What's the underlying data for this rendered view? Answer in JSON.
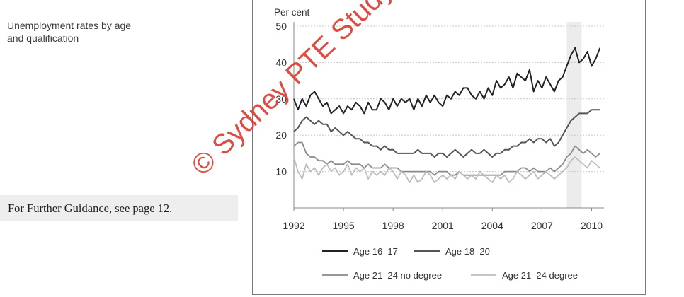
{
  "page": {
    "chart_title": "Unemployment rates by age\nand qualification",
    "guidance_text": "For Further Guidance, see page 12.",
    "watermark": "© Sydney PTE Study Centre"
  },
  "chart_data": {
    "type": "line",
    "ylabel": "Per cent",
    "xlabel": "",
    "ylim": [
      0,
      50
    ],
    "xlim": [
      1992,
      2010.75
    ],
    "yticks": [
      10,
      20,
      30,
      40,
      50
    ],
    "xticks": [
      1992,
      1995,
      1998,
      2001,
      2004,
      2007,
      2010
    ],
    "grid": true,
    "legend_position": "bottom",
    "shaded_period": [
      2008.5,
      2009.4
    ],
    "series": [
      {
        "name": "Age 16–17",
        "color": "#222222",
        "x": [
          1992,
          1992.25,
          1992.5,
          1992.75,
          1993,
          1993.25,
          1993.5,
          1993.75,
          1994,
          1994.25,
          1994.5,
          1994.75,
          1995,
          1995.25,
          1995.5,
          1995.75,
          1996,
          1996.25,
          1996.5,
          1996.75,
          1997,
          1997.25,
          1997.5,
          1997.75,
          1998,
          1998.25,
          1998.5,
          1998.75,
          1999,
          1999.25,
          1999.5,
          1999.75,
          2000,
          2000.25,
          2000.5,
          2000.75,
          2001,
          2001.25,
          2001.5,
          2001.75,
          2002,
          2002.25,
          2002.5,
          2002.75,
          2003,
          2003.25,
          2003.5,
          2003.75,
          2004,
          2004.25,
          2004.5,
          2004.75,
          2005,
          2005.25,
          2005.5,
          2005.75,
          2006,
          2006.25,
          2006.5,
          2006.75,
          2007,
          2007.25,
          2007.5,
          2007.75,
          2008,
          2008.25,
          2008.5,
          2008.75,
          2009,
          2009.25,
          2009.5,
          2009.75,
          2010,
          2010.25,
          2010.5
        ],
        "values": [
          30,
          27,
          30,
          28,
          31,
          32,
          30,
          28,
          29,
          26,
          27,
          28,
          26,
          28,
          27,
          29,
          28,
          26,
          29,
          27,
          27,
          30,
          29,
          27,
          30,
          28,
          30,
          29,
          30,
          27,
          30,
          28,
          31,
          29,
          31,
          29,
          28,
          31,
          30,
          32,
          31,
          33,
          33,
          31,
          30,
          32,
          30,
          33,
          31,
          35,
          33,
          34,
          36,
          33,
          37,
          36,
          35,
          38,
          32,
          35,
          33,
          36,
          34,
          32,
          35,
          36,
          39,
          42,
          44,
          40,
          41,
          43,
          39,
          41,
          44
        ]
      },
      {
        "name": "Age 18–20",
        "color": "#555555",
        "x": [
          1992,
          1992.25,
          1992.5,
          1992.75,
          1993,
          1993.25,
          1993.5,
          1993.75,
          1994,
          1994.25,
          1994.5,
          1994.75,
          1995,
          1995.25,
          1995.5,
          1995.75,
          1996,
          1996.25,
          1996.5,
          1996.75,
          1997,
          1997.25,
          1997.5,
          1997.75,
          1998,
          1998.25,
          1998.5,
          1998.75,
          1999,
          1999.25,
          1999.5,
          1999.75,
          2000,
          2000.25,
          2000.5,
          2000.75,
          2001,
          2001.25,
          2001.5,
          2001.75,
          2002,
          2002.25,
          2002.5,
          2002.75,
          2003,
          2003.25,
          2003.5,
          2003.75,
          2004,
          2004.25,
          2004.5,
          2004.75,
          2005,
          2005.25,
          2005.5,
          2005.75,
          2006,
          2006.25,
          2006.5,
          2006.75,
          2007,
          2007.25,
          2007.5,
          2007.75,
          2008,
          2008.25,
          2008.5,
          2008.75,
          2009,
          2009.25,
          2009.5,
          2009.75,
          2010,
          2010.25,
          2010.5
        ],
        "values": [
          21,
          22,
          24,
          25,
          24,
          23,
          24,
          23,
          23,
          21,
          22,
          21,
          20,
          21,
          20,
          19,
          19,
          18,
          18,
          17,
          17,
          16,
          17,
          16,
          16,
          15,
          15,
          15,
          15,
          15,
          16,
          15,
          15,
          15,
          14,
          15,
          15,
          14,
          15,
          16,
          15,
          14,
          15,
          16,
          15,
          15,
          16,
          15,
          14,
          15,
          15,
          16,
          16,
          17,
          17,
          18,
          18,
          19,
          18,
          19,
          19,
          18,
          19,
          17,
          18,
          20,
          22,
          24,
          25,
          26,
          26,
          26,
          27,
          27,
          27
        ]
      },
      {
        "name": "Age 21–24 no degree",
        "color": "#8a8a8a",
        "x": [
          1992,
          1992.25,
          1992.5,
          1992.75,
          1993,
          1993.25,
          1993.5,
          1993.75,
          1994,
          1994.25,
          1994.5,
          1994.75,
          1995,
          1995.25,
          1995.5,
          1995.75,
          1996,
          1996.25,
          1996.5,
          1996.75,
          1997,
          1997.25,
          1997.5,
          1997.75,
          1998,
          1998.25,
          1998.5,
          1998.75,
          1999,
          1999.25,
          1999.5,
          1999.75,
          2000,
          2000.25,
          2000.5,
          2000.75,
          2001,
          2001.25,
          2001.5,
          2001.75,
          2002,
          2002.25,
          2002.5,
          2002.75,
          2003,
          2003.25,
          2003.5,
          2003.75,
          2004,
          2004.25,
          2004.5,
          2004.75,
          2005,
          2005.25,
          2005.5,
          2005.75,
          2006,
          2006.25,
          2006.5,
          2006.75,
          2007,
          2007.25,
          2007.5,
          2007.75,
          2008,
          2008.25,
          2008.5,
          2008.75,
          2009,
          2009.25,
          2009.5,
          2009.75,
          2010,
          2010.25,
          2010.5
        ],
        "values": [
          17,
          18,
          18,
          15,
          14,
          14,
          13,
          13,
          12,
          13,
          12,
          12,
          12,
          13,
          12,
          12,
          12,
          11,
          12,
          11,
          11,
          11,
          12,
          11,
          11,
          11,
          10,
          10,
          10,
          10,
          10,
          10,
          10,
          10,
          9,
          10,
          10,
          10,
          9,
          9,
          10,
          9,
          9,
          9,
          9,
          9,
          9,
          9,
          9,
          9,
          9,
          10,
          10,
          10,
          10,
          11,
          11,
          10,
          11,
          10,
          10,
          10,
          11,
          10,
          11,
          12,
          14,
          15,
          17,
          16,
          15,
          16,
          15,
          14,
          15
        ]
      },
      {
        "name": "Age 21–24 degree",
        "color": "#bdbdbd",
        "x": [
          1992,
          1992.25,
          1992.5,
          1992.75,
          1993,
          1993.25,
          1993.5,
          1993.75,
          1994,
          1994.25,
          1994.5,
          1994.75,
          1995,
          1995.25,
          1995.5,
          1995.75,
          1996,
          1996.25,
          1996.5,
          1996.75,
          1997,
          1997.25,
          1997.5,
          1997.75,
          1998,
          1998.25,
          1998.5,
          1998.75,
          1999,
          1999.25,
          1999.5,
          1999.75,
          2000,
          2000.25,
          2000.5,
          2000.75,
          2001,
          2001.25,
          2001.5,
          2001.75,
          2002,
          2002.25,
          2002.5,
          2002.75,
          2003,
          2003.25,
          2003.5,
          2003.75,
          2004,
          2004.25,
          2004.5,
          2004.75,
          2005,
          2005.25,
          2005.5,
          2005.75,
          2006,
          2006.25,
          2006.5,
          2006.75,
          2007,
          2007.25,
          2007.5,
          2007.75,
          2008,
          2008.25,
          2008.5,
          2008.75,
          2009,
          2009.25,
          2009.5,
          2009.75,
          2010,
          2010.25,
          2010.5
        ],
        "values": [
          14,
          10,
          8,
          12,
          10,
          11,
          9,
          11,
          12,
          10,
          11,
          9,
          10,
          12,
          9,
          11,
          10,
          11,
          8,
          10,
          9,
          10,
          9,
          11,
          10,
          8,
          10,
          9,
          7,
          9,
          7,
          8,
          10,
          9,
          7,
          8,
          9,
          8,
          9,
          8,
          10,
          9,
          8,
          9,
          8,
          10,
          9,
          8,
          7,
          9,
          8,
          9,
          7,
          8,
          10,
          9,
          8,
          9,
          10,
          8,
          9,
          10,
          9,
          8,
          9,
          10,
          11,
          13,
          14,
          13,
          12,
          11,
          13,
          12,
          11
        ]
      }
    ]
  }
}
